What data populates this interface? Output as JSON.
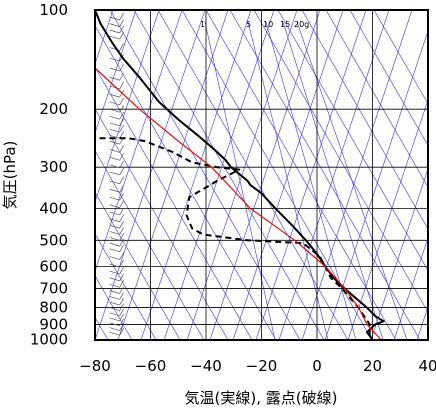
{
  "chart_data": {
    "type": "line",
    "title": "",
    "xlabel": "気温(実線), 露点(破線)",
    "ylabel": "気圧(hPa)",
    "xlim": [
      -80,
      40
    ],
    "ylim": [
      1050,
      100
    ],
    "y_scale": "log",
    "grid": true,
    "x_ticks": [
      "−80",
      "−60",
      "−40",
      "−20",
      "0",
      "20",
      "40"
    ],
    "x_tick_values": [
      -80,
      -60,
      -40,
      -20,
      0,
      20,
      40
    ],
    "y_ticks": [
      "100",
      "200",
      "300",
      "400",
      "500",
      "600",
      "700",
      "800",
      "900",
      "1000"
    ],
    "y_tick_values": [
      100,
      200,
      300,
      400,
      500,
      600,
      700,
      800,
      900,
      1000
    ],
    "mixing_ratio_labels": [
      "1",
      "5",
      "10",
      "15",
      "20g"
    ],
    "colors": {
      "temperature": "#000000",
      "dewpoint": "#000000",
      "parcel": "#e01010",
      "guide_lines": "#3a3ad8",
      "grid": "#000000"
    },
    "series": [
      {
        "name": "気温",
        "style": "solid",
        "points": [
          {
            "p": 100,
            "t": -80
          },
          {
            "p": 110,
            "t": -78
          },
          {
            "p": 125,
            "t": -74
          },
          {
            "p": 140,
            "t": -70
          },
          {
            "p": 160,
            "t": -64
          },
          {
            "p": 190,
            "t": -57
          },
          {
            "p": 215,
            "t": -50
          },
          {
            "p": 240,
            "t": -43
          },
          {
            "p": 265,
            "t": -37
          },
          {
            "p": 285,
            "t": -33
          },
          {
            "p": 300,
            "t": -31
          },
          {
            "p": 330,
            "t": -25
          },
          {
            "p": 340,
            "t": -24
          },
          {
            "p": 360,
            "t": -20
          },
          {
            "p": 400,
            "t": -15
          },
          {
            "p": 450,
            "t": -9
          },
          {
            "p": 500,
            "t": -4
          },
          {
            "p": 550,
            "t": 0
          },
          {
            "p": 600,
            "t": 3
          },
          {
            "p": 650,
            "t": 6
          },
          {
            "p": 700,
            "t": 10
          },
          {
            "p": 750,
            "t": 14
          },
          {
            "p": 800,
            "t": 18
          },
          {
            "p": 850,
            "t": 21
          },
          {
            "p": 880,
            "t": 24
          },
          {
            "p": 900,
            "t": 21
          },
          {
            "p": 950,
            "t": 18
          },
          {
            "p": 1000,
            "t": 20
          }
        ]
      },
      {
        "name": "露点",
        "style": "dashed",
        "points": [
          {
            "p": 245,
            "t": -82
          },
          {
            "p": 245,
            "t": -68
          },
          {
            "p": 250,
            "t": -62
          },
          {
            "p": 270,
            "t": -52
          },
          {
            "p": 290,
            "t": -45
          },
          {
            "p": 300,
            "t": -36
          },
          {
            "p": 305,
            "t": -28
          },
          {
            "p": 330,
            "t": -36
          },
          {
            "p": 370,
            "t": -46
          },
          {
            "p": 420,
            "t": -47
          },
          {
            "p": 460,
            "t": -45
          },
          {
            "p": 480,
            "t": -41
          },
          {
            "p": 500,
            "t": -25
          },
          {
            "p": 510,
            "t": -5
          },
          {
            "p": 560,
            "t": 1
          },
          {
            "p": 600,
            "t": 3
          },
          {
            "p": 650,
            "t": 5
          },
          {
            "p": 700,
            "t": 9
          },
          {
            "p": 750,
            "t": 12
          },
          {
            "p": 800,
            "t": 15
          },
          {
            "p": 850,
            "t": 17
          },
          {
            "p": 900,
            "t": 19
          },
          {
            "p": 950,
            "t": 19
          },
          {
            "p": 1000,
            "t": 19
          }
        ]
      },
      {
        "name": "",
        "style": "solid-red",
        "points": [
          {
            "p": 150,
            "t": -80
          },
          {
            "p": 200,
            "t": -64
          },
          {
            "p": 250,
            "t": -50
          },
          {
            "p": 300,
            "t": -38
          },
          {
            "p": 400,
            "t": -24
          },
          {
            "p": 500,
            "t": -8
          },
          {
            "p": 600,
            "t": 3
          },
          {
            "p": 700,
            "t": 10
          },
          {
            "p": 800,
            "t": 15
          },
          {
            "p": 900,
            "t": 18
          },
          {
            "p": 1000,
            "t": 23
          }
        ]
      }
    ],
    "wind_barbs": {
      "x_temperature": -74,
      "levels_hpa": [
        105,
        110,
        115,
        120,
        130,
        140,
        150,
        160,
        170,
        180,
        190,
        200,
        210,
        220,
        230,
        240,
        250,
        265,
        280,
        295,
        310,
        330,
        350,
        370,
        390,
        410,
        430,
        450,
        470,
        490,
        510,
        530,
        560,
        590,
        620,
        650,
        680,
        710,
        740,
        770,
        800,
        830,
        860,
        890,
        920,
        950
      ]
    }
  }
}
